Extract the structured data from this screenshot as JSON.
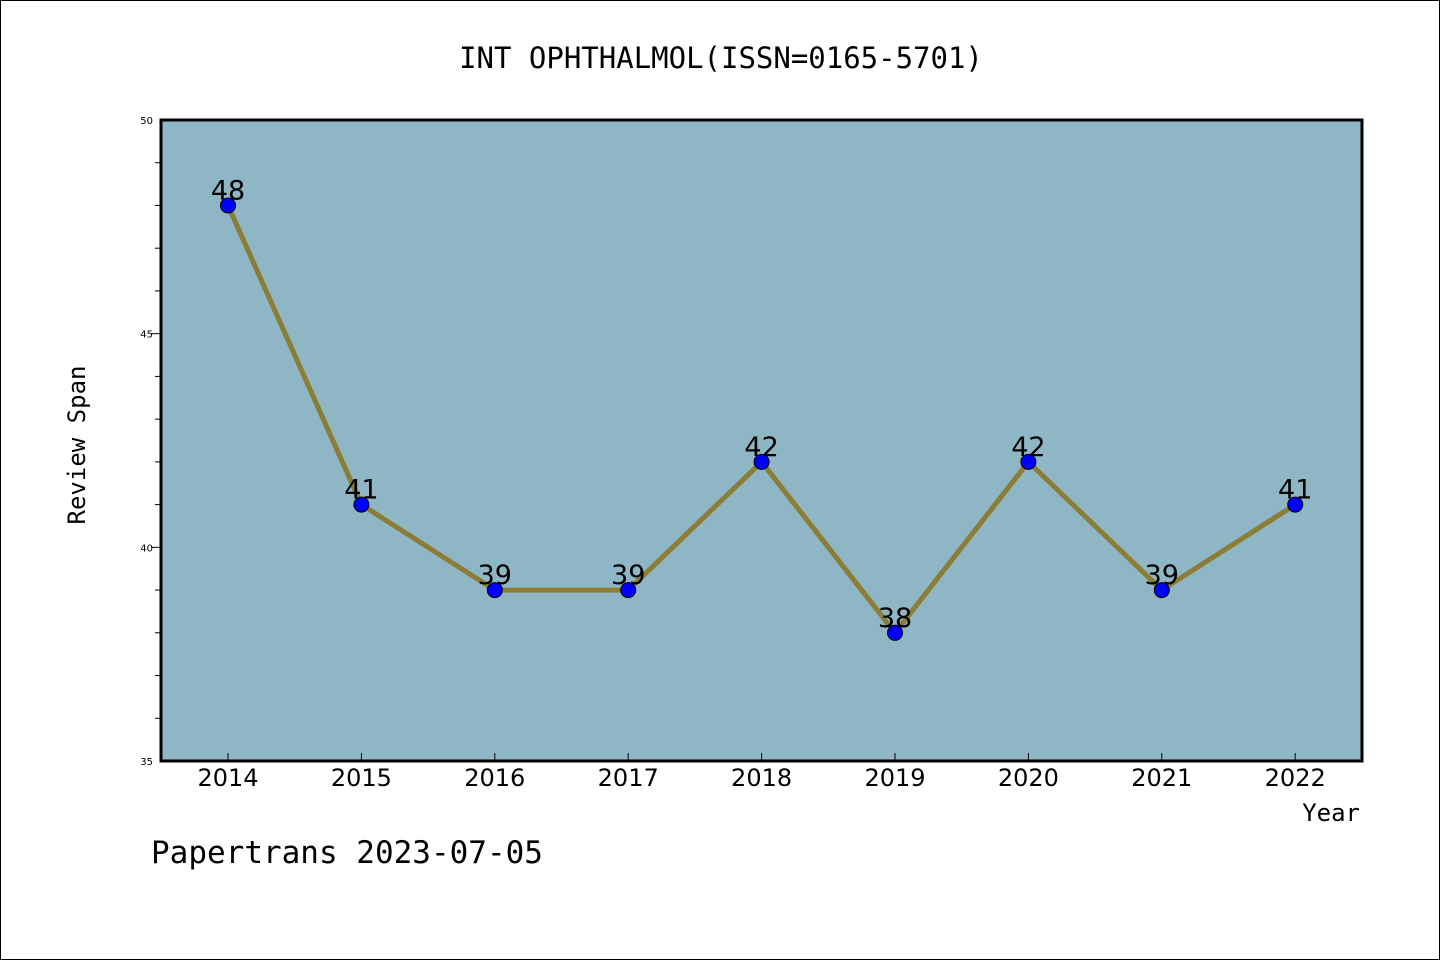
{
  "chart_data": {
    "type": "line",
    "title": "INT OPHTHALMOL(ISSN=0165-5701)",
    "xlabel": "Year",
    "ylabel": "Review Span",
    "categories": [
      "2014",
      "2015",
      "2016",
      "2017",
      "2018",
      "2019",
      "2020",
      "2021",
      "2022"
    ],
    "series": [
      {
        "values": [
          48,
          41,
          39,
          39,
          42,
          38,
          42,
          39,
          41
        ]
      }
    ],
    "data_labels": [
      "48",
      "41",
      "39",
      "39",
      "42",
      "38",
      "42",
      "39",
      "41"
    ],
    "ylim": [
      35,
      50
    ],
    "yticks": [
      35,
      40,
      45,
      50
    ],
    "ytick_labels": [
      "35",
      "40",
      "45",
      "50"
    ],
    "grid": false,
    "colors": {
      "plot_background": "#8FB6C5",
      "line": "#8C7D36",
      "marker": "#0000FF"
    }
  },
  "footer": {
    "text": "Papertrans 2023-07-05"
  }
}
